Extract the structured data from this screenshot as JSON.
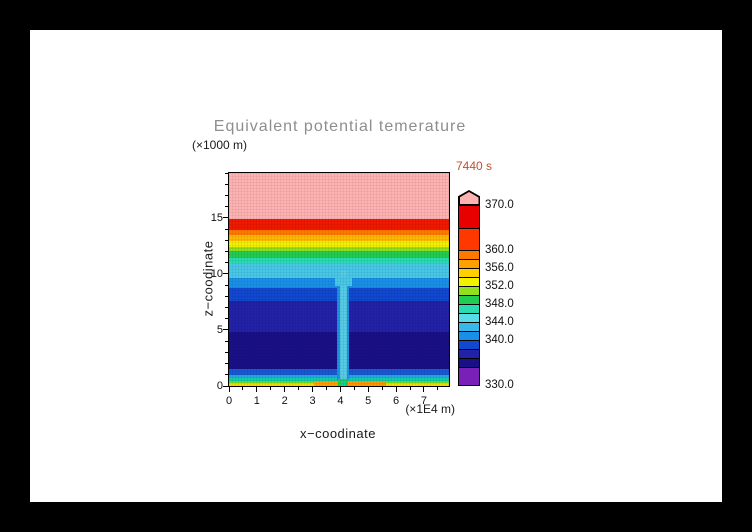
{
  "page": {
    "background": "#000000",
    "canvas_background": "#ffffff"
  },
  "text_colors": {
    "title": "#8e8e8e",
    "axis": "#1a1a1a",
    "time": "#c0502a"
  },
  "chart_data": {
    "type": "contour",
    "title": "Equivalent potential temerature",
    "time": "7440 s",
    "xlabel": "x−coodinate",
    "x_unit": "(×1E4 m)",
    "ylabel": "z−coodinate",
    "y_unit": "(×1000 m)",
    "x_range": [
      0,
      7.9
    ],
    "z_range": [
      0,
      19
    ],
    "x_ticks": [
      0,
      1,
      2,
      3,
      4,
      5,
      6,
      7
    ],
    "z_ticks": [
      0,
      5,
      10,
      15
    ],
    "contour_levels": [
      330,
      334,
      336,
      338,
      340,
      342,
      344,
      346,
      348,
      350,
      352,
      354,
      356,
      358,
      360,
      365,
      370
    ],
    "field_description": "Horizontally uniform theta-e stratification: ~352-356 K thin surface layer, minimum ~334-338 K between 1.5 and 8 km, increasing through 344 K near 10 km and 360 K near 14 km to >370 K above 15 km; narrow saturated column (~344 K) at x~4 (x1E4 m) extending from near the surface up to ~10 km, with ~348-356 K patches at the surface around it.",
    "stratification": [
      {
        "z0": 0.0,
        "z1": 0.32,
        "color": "#f2da00"
      },
      {
        "z0": 0.32,
        "z1": 0.52,
        "color": "#6fd822"
      },
      {
        "z0": 0.52,
        "z1": 0.72,
        "color": "#12ccaa"
      },
      {
        "z0": 0.72,
        "z1": 0.98,
        "color": "#22a8e0"
      },
      {
        "z0": 0.98,
        "z1": 1.55,
        "color": "#1858d0"
      },
      {
        "z0": 1.55,
        "z1": 4.9,
        "color": "#191088"
      },
      {
        "z0": 4.9,
        "z1": 7.6,
        "color": "#2222a8"
      },
      {
        "z0": 7.6,
        "z1": 8.8,
        "color": "#1048d0"
      },
      {
        "z0": 8.8,
        "z1": 9.7,
        "color": "#1890e8"
      },
      {
        "z0": 9.7,
        "z1": 11.0,
        "color": "#48c8e8"
      },
      {
        "z0": 11.0,
        "z1": 11.5,
        "color": "#28dcb0"
      },
      {
        "z0": 11.5,
        "z1": 12.05,
        "color": "#22cc50"
      },
      {
        "z0": 12.05,
        "z1": 12.4,
        "color": "#90e020"
      },
      {
        "z0": 12.4,
        "z1": 12.95,
        "color": "#f2f200"
      },
      {
        "z0": 12.95,
        "z1": 13.5,
        "color": "#ffb800"
      },
      {
        "z0": 13.5,
        "z1": 14.0,
        "color": "#ff7800"
      },
      {
        "z0": 14.0,
        "z1": 14.9,
        "color": "#f21800"
      },
      {
        "z0": 14.9,
        "z1": 19.0,
        "color": "#ffb2b2"
      }
    ],
    "features": [
      {
        "name": "downdraft-halo",
        "x0": 3.88,
        "x1": 4.32,
        "z0": 0.55,
        "z1": 9.0,
        "color": "#2090e0"
      },
      {
        "name": "downdraft-core",
        "x0": 3.98,
        "x1": 4.22,
        "z0": 0.55,
        "z1": 10.3,
        "color": "#55cce8"
      },
      {
        "name": "cyan-dip",
        "x0": 3.8,
        "x1": 4.4,
        "z0": 9.0,
        "z1": 9.7,
        "color": "#48c8e8"
      },
      {
        "name": "surface-orange-left",
        "x0": 3.05,
        "x1": 3.95,
        "z0": 0.0,
        "z1": 0.32,
        "color": "#ffa000"
      },
      {
        "name": "surface-orange-right",
        "x0": 4.25,
        "x1": 5.65,
        "z0": 0.0,
        "z1": 0.32,
        "color": "#ff9800"
      },
      {
        "name": "surface-green-spike",
        "x0": 3.93,
        "x1": 4.27,
        "z0": 0.0,
        "z1": 0.62,
        "color": "#22cc50"
      },
      {
        "name": "surface-teal-spike",
        "x0": 4.02,
        "x1": 4.18,
        "z0": 0.0,
        "z1": 0.45,
        "color": "#12ccaa"
      }
    ],
    "colorbar": {
      "min": 330,
      "max": 370,
      "over_color": "#ffb2b2",
      "segments": [
        {
          "from": 330,
          "to": 334,
          "color": "#7820b8"
        },
        {
          "from": 334,
          "to": 336,
          "color": "#191088"
        },
        {
          "from": 336,
          "to": 338,
          "color": "#2222a8"
        },
        {
          "from": 338,
          "to": 340,
          "color": "#1048d0"
        },
        {
          "from": 340,
          "to": 342,
          "color": "#1890e8"
        },
        {
          "from": 342,
          "to": 344,
          "color": "#38b8e8"
        },
        {
          "from": 344,
          "to": 346,
          "color": "#58dce8"
        },
        {
          "from": 346,
          "to": 348,
          "color": "#28dcb0"
        },
        {
          "from": 348,
          "to": 350,
          "color": "#22cc50"
        },
        {
          "from": 350,
          "to": 352,
          "color": "#90e020"
        },
        {
          "from": 352,
          "to": 354,
          "color": "#f2f200"
        },
        {
          "from": 354,
          "to": 356,
          "color": "#ffd000"
        },
        {
          "from": 356,
          "to": 358,
          "color": "#ffa000"
        },
        {
          "from": 358,
          "to": 360,
          "color": "#ff7800"
        },
        {
          "from": 360,
          "to": 365,
          "color": "#ff3800"
        },
        {
          "from": 365,
          "to": 370,
          "color": "#e80000"
        }
      ],
      "labels": [
        {
          "value": 370,
          "text": "370.0"
        },
        {
          "value": 360,
          "text": "360.0"
        },
        {
          "value": 356,
          "text": "356.0"
        },
        {
          "value": 352,
          "text": "352.0"
        },
        {
          "value": 348,
          "text": "348.0"
        },
        {
          "value": 344,
          "text": "344.0"
        },
        {
          "value": 340,
          "text": "340.0"
        },
        {
          "value": 330,
          "text": "330.0"
        }
      ]
    }
  }
}
